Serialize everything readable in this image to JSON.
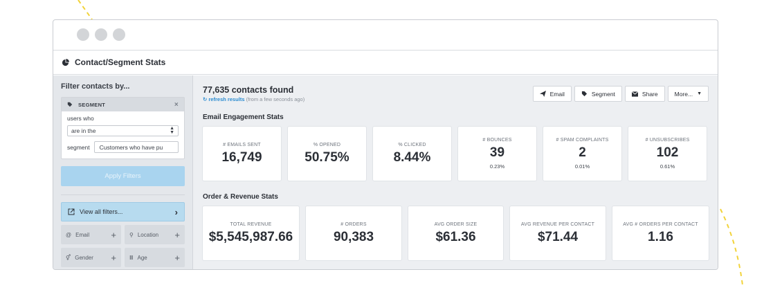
{
  "page": {
    "title": "Contact/Segment Stats"
  },
  "sidebar": {
    "title": "Filter contacts by...",
    "filter": {
      "header": "SEGMENT",
      "users_label": "users who",
      "condition_value": "are in the",
      "segment_label": "segment",
      "segment_value": "Customers who have pu"
    },
    "apply_label": "Apply Filters",
    "view_all_label": "View all filters...",
    "chips": [
      {
        "label": "Email",
        "icon": "at-icon"
      },
      {
        "label": "Location",
        "icon": "map-pin-icon"
      },
      {
        "label": "Gender",
        "icon": "gender-icon"
      },
      {
        "label": "Age",
        "icon": "bar-icon"
      }
    ]
  },
  "header": {
    "count": "77,635 contacts found",
    "refresh_link": "refresh results",
    "refresh_time": "(from a few seconds ago)"
  },
  "actions": {
    "email": "Email",
    "segment": "Segment",
    "share": "Share",
    "more": "More..."
  },
  "engagement": {
    "title": "Email Engagement Stats",
    "cards": [
      {
        "label": "# EMAILS SENT",
        "value": "16,749",
        "sub": ""
      },
      {
        "label": "% OPENED",
        "value": "50.75%",
        "sub": ""
      },
      {
        "label": "% CLICKED",
        "value": "8.44%",
        "sub": ""
      },
      {
        "label": "# BOUNCES",
        "value": "39",
        "sub": "0.23%"
      },
      {
        "label": "# SPAM COMPLAINTS",
        "value": "2",
        "sub": "0.01%"
      },
      {
        "label": "# UNSUBSCRIBES",
        "value": "102",
        "sub": "0.61%"
      }
    ]
  },
  "revenue": {
    "title": "Order & Revenue Stats",
    "cards": [
      {
        "label": "TOTAL REVENUE",
        "value": "$5,545,987.66"
      },
      {
        "label": "# ORDERS",
        "value": "90,383"
      },
      {
        "label": "AVG ORDER SIZE",
        "value": "$61.36"
      },
      {
        "label": "AVG REVENUE PER CONTACT",
        "value": "$71.44"
      },
      {
        "label": "AVG # ORDERS PER CONTACT",
        "value": "1.16"
      }
    ]
  },
  "colors": {
    "accent": "#2a8bd0",
    "deco_dash": "#f2d33a"
  }
}
